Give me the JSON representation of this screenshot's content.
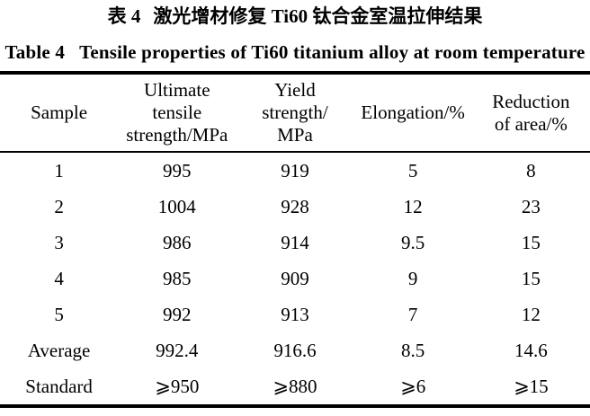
{
  "colors": {
    "text": "#000000",
    "background": "#ffffff",
    "table_rules": "#000000"
  },
  "caption_cn": {
    "label": "表 4",
    "text": "激光增材修复 Ti60 钛合金室温拉伸结果"
  },
  "caption_en": {
    "label": "Table 4",
    "text": "Tensile properties of Ti60 titanium alloy at room temperature"
  },
  "table": {
    "headers": [
      "Sample",
      "Ultimate\ntensile\nstrength/MPa",
      "Yield\nstrength/\nMPa",
      "Elongation/%",
      "Reduction\nof area/%"
    ],
    "rows": [
      [
        "1",
        "995",
        "919",
        "5",
        "8"
      ],
      [
        "2",
        "1004",
        "928",
        "12",
        "23"
      ],
      [
        "3",
        "986",
        "914",
        "9.5",
        "15"
      ],
      [
        "4",
        "985",
        "909",
        "9",
        "15"
      ],
      [
        "5",
        "992",
        "913",
        "7",
        "12"
      ],
      [
        "Average",
        "992.4",
        "916.6",
        "8.5",
        "14.6"
      ],
      [
        "Standard",
        "⩾950",
        "⩾880",
        "⩾6",
        "⩾15"
      ]
    ]
  },
  "chart_data": {
    "type": "table",
    "title": "Table 4 Tensile properties of Ti60 titanium alloy at room temperature",
    "title_cn": "表 4 激光增材修复 Ti60 钛合金室温拉伸结果",
    "columns": [
      "Sample",
      "Ultimate tensile strength/MPa",
      "Yield strength/MPa",
      "Elongation/%",
      "Reduction of area/%"
    ],
    "rows": [
      [
        "1",
        995,
        919,
        5,
        8
      ],
      [
        "2",
        1004,
        928,
        12,
        23
      ],
      [
        "3",
        986,
        914,
        9.5,
        15
      ],
      [
        "4",
        985,
        909,
        9,
        15
      ],
      [
        "5",
        992,
        913,
        7,
        12
      ],
      [
        "Average",
        992.4,
        916.6,
        8.5,
        14.6
      ],
      [
        "Standard",
        "⩾950",
        "⩾880",
        "⩾6",
        "⩾15"
      ]
    ]
  }
}
